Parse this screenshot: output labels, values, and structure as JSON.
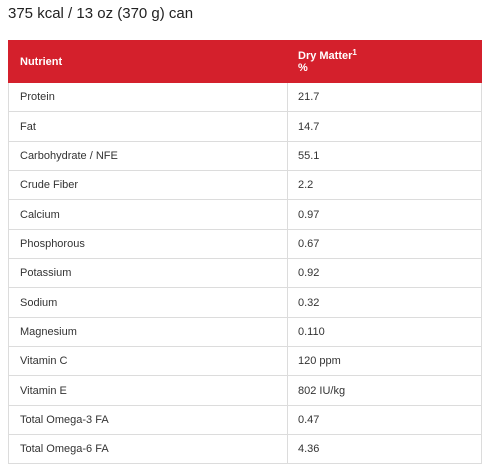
{
  "heading": "375 kcal / 13 oz (370 g) can",
  "table": {
    "header": {
      "nutrient": "Nutrient",
      "dry_matter": "Dry Matter",
      "dry_matter_footnote": "1",
      "dry_matter_unit": "%"
    },
    "rows": [
      {
        "nutrient": "Protein",
        "value": "21.7"
      },
      {
        "nutrient": "Fat",
        "value": "14.7"
      },
      {
        "nutrient": "Carbohydrate / NFE",
        "value": "55.1"
      },
      {
        "nutrient": "Crude Fiber",
        "value": "2.2"
      },
      {
        "nutrient": "Calcium",
        "value": "0.97"
      },
      {
        "nutrient": "Phosphorous",
        "value": "0.67"
      },
      {
        "nutrient": "Potassium",
        "value": "0.92"
      },
      {
        "nutrient": "Sodium",
        "value": "0.32"
      },
      {
        "nutrient": "Magnesium",
        "value": "0.110"
      },
      {
        "nutrient": "Vitamin C",
        "value": "120 ppm"
      },
      {
        "nutrient": "Vitamin E",
        "value": "802 IU/kg"
      },
      {
        "nutrient": "Total Omega-3 FA",
        "value": "0.47"
      },
      {
        "nutrient": "Total Omega-6 FA",
        "value": "4.36"
      }
    ]
  },
  "colors": {
    "header_background": "#d4202c",
    "header_text": "#ffffff",
    "border": "#dcdcdc",
    "body_text": "#333333"
  }
}
